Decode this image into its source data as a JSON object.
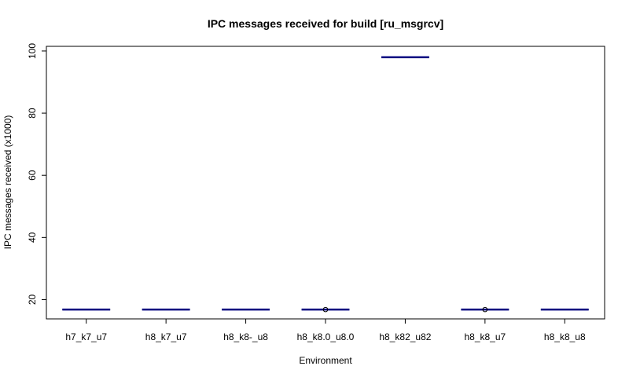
{
  "chart_data": {
    "type": "boxplot",
    "title": "IPC messages received for build [ru_msgrcv]",
    "xlabel": "Environment",
    "ylabel": "IPC messages received (x1000)",
    "ylim": [
      13.8,
      101.5
    ],
    "yticks": [
      20,
      40,
      60,
      80,
      100
    ],
    "categories": [
      "h7_k7_u7",
      "h8_k7_u7",
      "h8_k8-_u8",
      "h8_k8.0_u8.0",
      "h8_k82_u82",
      "h8_k8_u7",
      "h8_k8_u8"
    ],
    "series": [
      {
        "values": [
          16.8,
          16.8,
          16.8,
          16.8,
          98.0,
          16.8,
          16.8
        ],
        "outliers": [
          [],
          [],
          [],
          [
            16.8
          ],
          [],
          [
            16.8
          ],
          []
        ]
      }
    ],
    "median_color": "#000080",
    "grid": false,
    "legend": "none"
  }
}
